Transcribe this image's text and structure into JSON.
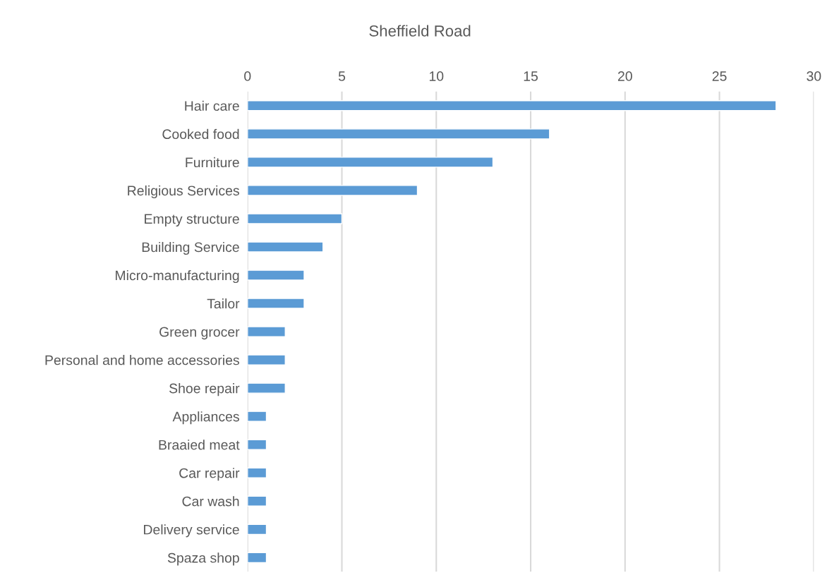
{
  "chart_data": {
    "type": "bar",
    "orientation": "horizontal",
    "title": "Sheffield Road",
    "categories": [
      "Hair care",
      "Cooked food",
      "Furniture",
      "Religious Services",
      "Empty structure",
      "Building Service",
      "Micro-manufacturing",
      "Tailor",
      "Green grocer",
      "Personal and home accessories",
      "Shoe repair",
      "Appliances",
      "Braaied meat",
      "Car repair",
      "Car wash",
      "Delivery service",
      "Spaza shop"
    ],
    "values": [
      28,
      16,
      13,
      9,
      5,
      4,
      3,
      3,
      2,
      2,
      2,
      1,
      1,
      1,
      1,
      1,
      1
    ],
    "color": "#5b9bd5",
    "xlim": [
      0,
      30
    ],
    "xticks": [
      0,
      5,
      10,
      15,
      20,
      25,
      30
    ],
    "grid": "x",
    "legend": false
  }
}
